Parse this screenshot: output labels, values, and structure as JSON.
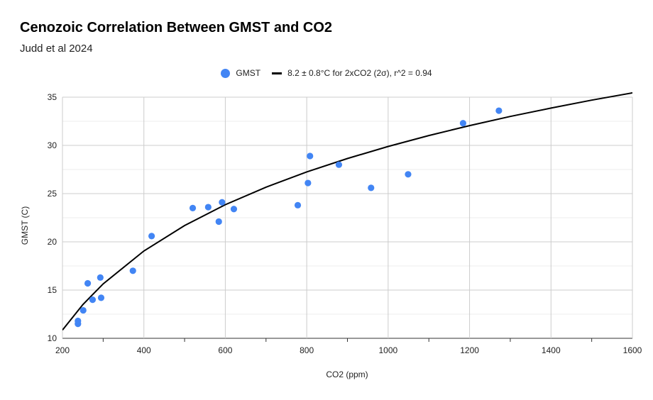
{
  "chart_data": {
    "type": "scatter",
    "title": "Cenozoic Correlation Between GMST and CO2",
    "subtitle": "Judd et al 2024",
    "xlabel": "CO2 (ppm)",
    "ylabel": "GMST (C)",
    "xlim": [
      200,
      1600
    ],
    "ylim": [
      10,
      35
    ],
    "xticks": [
      200,
      400,
      600,
      800,
      1000,
      1200,
      1400,
      1600
    ],
    "yticks": [
      10,
      15,
      20,
      25,
      30,
      35
    ],
    "grid": true,
    "legend_position": "top-center",
    "series": [
      {
        "name": "GMST",
        "kind": "points",
        "color": "#4285f4",
        "x": [
          238,
          238,
          251,
          262,
          274,
          293,
          295,
          373,
          419,
          520,
          558,
          584,
          592,
          621,
          778,
          803,
          808,
          879,
          958,
          1049,
          1184,
          1272
        ],
        "y": [
          11.8,
          11.5,
          12.9,
          15.7,
          14.0,
          16.3,
          14.2,
          17.0,
          20.6,
          23.5,
          23.6,
          22.1,
          24.1,
          23.4,
          23.8,
          26.1,
          28.9,
          28.0,
          25.6,
          27.0,
          32.3,
          33.6
        ]
      },
      {
        "name": "8.2 ± 0.8°C for 2xCO2 (2σ), r^2 = 0.94",
        "kind": "fit",
        "color": "#000000",
        "formula": "y = 10.85 + 8.2 * log2(x / 200)",
        "x": [
          200,
          250,
          300,
          400,
          500,
          600,
          700,
          800,
          900,
          1000,
          1100,
          1200,
          1300,
          1400,
          1500,
          1600
        ],
        "y": [
          10.85,
          13.49,
          15.65,
          19.05,
          21.69,
          23.85,
          25.67,
          27.25,
          28.64,
          29.89,
          31.02,
          32.05,
          33.0,
          33.87,
          34.69,
          35.45
        ]
      }
    ]
  }
}
